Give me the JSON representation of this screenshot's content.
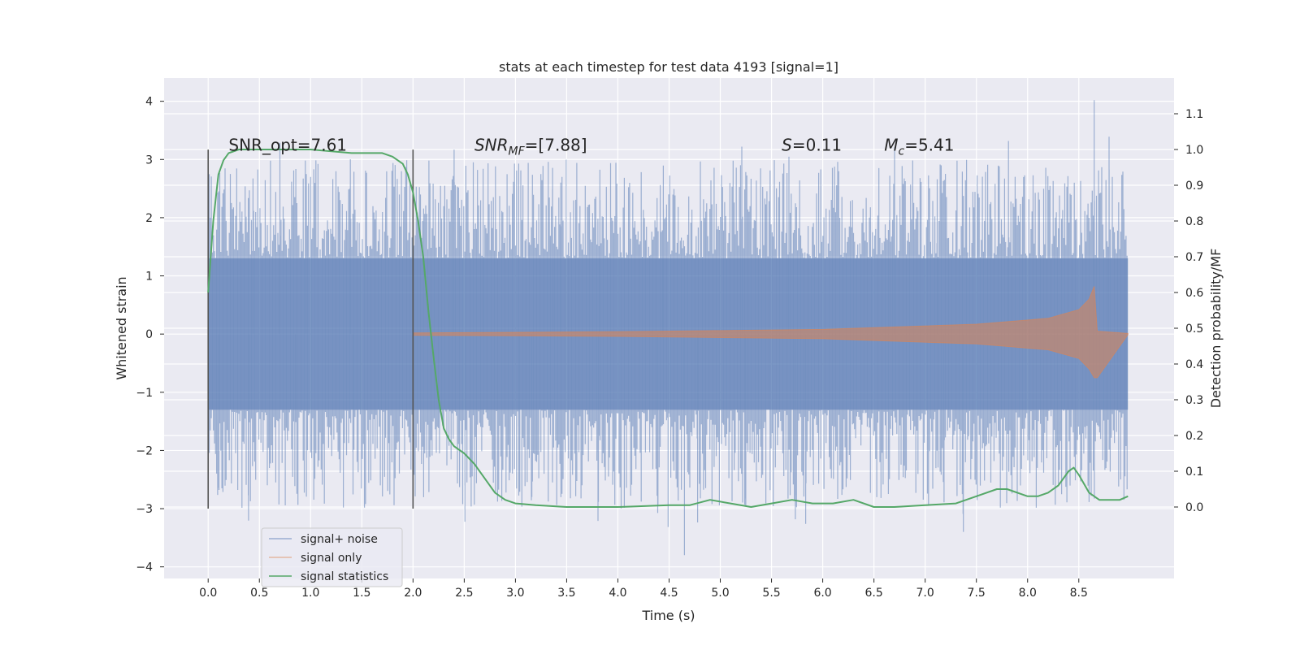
{
  "chart_data": {
    "type": "line",
    "title": "stats at each timestep for test data 4193 [signal=1]",
    "xlabel": "Time (s)",
    "ylabel": "Whitened strain",
    "ylabel_right": "Detection probability/MF",
    "xlim": [
      -0.43,
      9.43
    ],
    "ylim": [
      -4.2,
      4.4
    ],
    "ylim_right": [
      -0.2,
      1.2
    ],
    "xticks": [
      0.0,
      0.5,
      1.0,
      1.5,
      2.0,
      2.5,
      3.0,
      3.5,
      4.0,
      4.5,
      5.0,
      5.5,
      6.0,
      6.5,
      7.0,
      7.5,
      8.0,
      8.5
    ],
    "xtick_labels": [
      "0.0",
      "0.5",
      "1.0",
      "1.5",
      "2.0",
      "2.5",
      "3.0",
      "3.5",
      "4.0",
      "4.5",
      "5.0",
      "5.5",
      "6.0",
      "6.5",
      "7.0",
      "7.5",
      "8.0",
      "8.5"
    ],
    "yticks": [
      -4,
      -3,
      -2,
      -1,
      0,
      1,
      2,
      3,
      4
    ],
    "ytick_labels": [
      "−4",
      "−3",
      "−2",
      "−1",
      "0",
      "1",
      "2",
      "3",
      "4"
    ],
    "yticks_right": [
      0.0,
      0.1,
      0.2,
      0.3,
      0.4,
      0.5,
      0.6,
      0.7,
      0.8,
      0.9,
      1.0,
      1.1
    ],
    "ytick_labels_right": [
      "0.0",
      "0.1",
      "0.2",
      "0.3",
      "0.4",
      "0.5",
      "0.6",
      "0.7",
      "0.8",
      "0.9",
      "1.0",
      "1.1"
    ],
    "grid": true,
    "legend_position": "lower-left",
    "annotations": [
      {
        "text": "SNR_opt=7.61",
        "x": 0.2,
        "y": 3.15
      },
      {
        "text": "SNR_MF=[7.88]",
        "x": 2.6,
        "y": 3.15
      },
      {
        "text": "S=0.11",
        "x": 5.6,
        "y": 3.15
      },
      {
        "text": "M_c=5.41",
        "x": 6.6,
        "y": 3.15
      }
    ],
    "vlines": [
      {
        "x": 0.0,
        "y0": -3.0,
        "y1": 3.17
      },
      {
        "x": 2.0,
        "y0": -3.0,
        "y1": 3.17
      }
    ],
    "series": [
      {
        "name": "signal+ noise",
        "color": "#4c72b0",
        "x_range": [
          0.0,
          8.98
        ],
        "band_halfwidth": 1.3,
        "typical_peak": 2.4,
        "max_peak": 4.02,
        "max_peak_x": 8.65,
        "min_trough": -3.8,
        "min_trough_x": 4.65
      },
      {
        "name": "signal only",
        "color": "#dd8452",
        "x_range": [
          2.0,
          8.98
        ],
        "envelope": [
          [
            2.0,
            0.02
          ],
          [
            4.0,
            0.04
          ],
          [
            6.0,
            0.08
          ],
          [
            7.5,
            0.17
          ],
          [
            8.2,
            0.27
          ],
          [
            8.5,
            0.42
          ],
          [
            8.6,
            0.6
          ],
          [
            8.65,
            0.82
          ],
          [
            8.68,
            0.05
          ],
          [
            8.98,
            0.01
          ]
        ]
      },
      {
        "name": "signal statistics",
        "color": "#55a868",
        "axis": "right",
        "x": [
          0.0,
          0.05,
          0.1,
          0.15,
          0.2,
          0.3,
          0.4,
          0.6,
          1.0,
          1.4,
          1.7,
          1.8,
          1.9,
          1.95,
          2.0,
          2.05,
          2.1,
          2.15,
          2.2,
          2.25,
          2.3,
          2.35,
          2.4,
          2.5,
          2.6,
          2.7,
          2.8,
          2.9,
          3.0,
          3.2,
          3.5,
          4.0,
          4.5,
          4.7,
          4.9,
          5.1,
          5.3,
          5.5,
          5.7,
          5.9,
          6.1,
          6.3,
          6.5,
          6.7,
          7.0,
          7.3,
          7.5,
          7.7,
          7.8,
          8.0,
          8.1,
          8.2,
          8.3,
          8.4,
          8.45,
          8.5,
          8.6,
          8.7,
          8.8,
          8.9,
          8.98
        ],
        "y": [
          0.6,
          0.8,
          0.93,
          0.97,
          0.99,
          1.0,
          1.0,
          1.0,
          1.0,
          0.99,
          0.99,
          0.98,
          0.96,
          0.93,
          0.88,
          0.8,
          0.7,
          0.55,
          0.42,
          0.3,
          0.22,
          0.19,
          0.17,
          0.15,
          0.12,
          0.08,
          0.04,
          0.02,
          0.01,
          0.005,
          0.0,
          0.0,
          0.005,
          0.005,
          0.02,
          0.01,
          0.0,
          0.01,
          0.02,
          0.01,
          0.01,
          0.02,
          0.0,
          0.0,
          0.005,
          0.01,
          0.03,
          0.05,
          0.05,
          0.03,
          0.03,
          0.04,
          0.06,
          0.1,
          0.11,
          0.09,
          0.04,
          0.02,
          0.02,
          0.02,
          0.03
        ]
      }
    ]
  }
}
